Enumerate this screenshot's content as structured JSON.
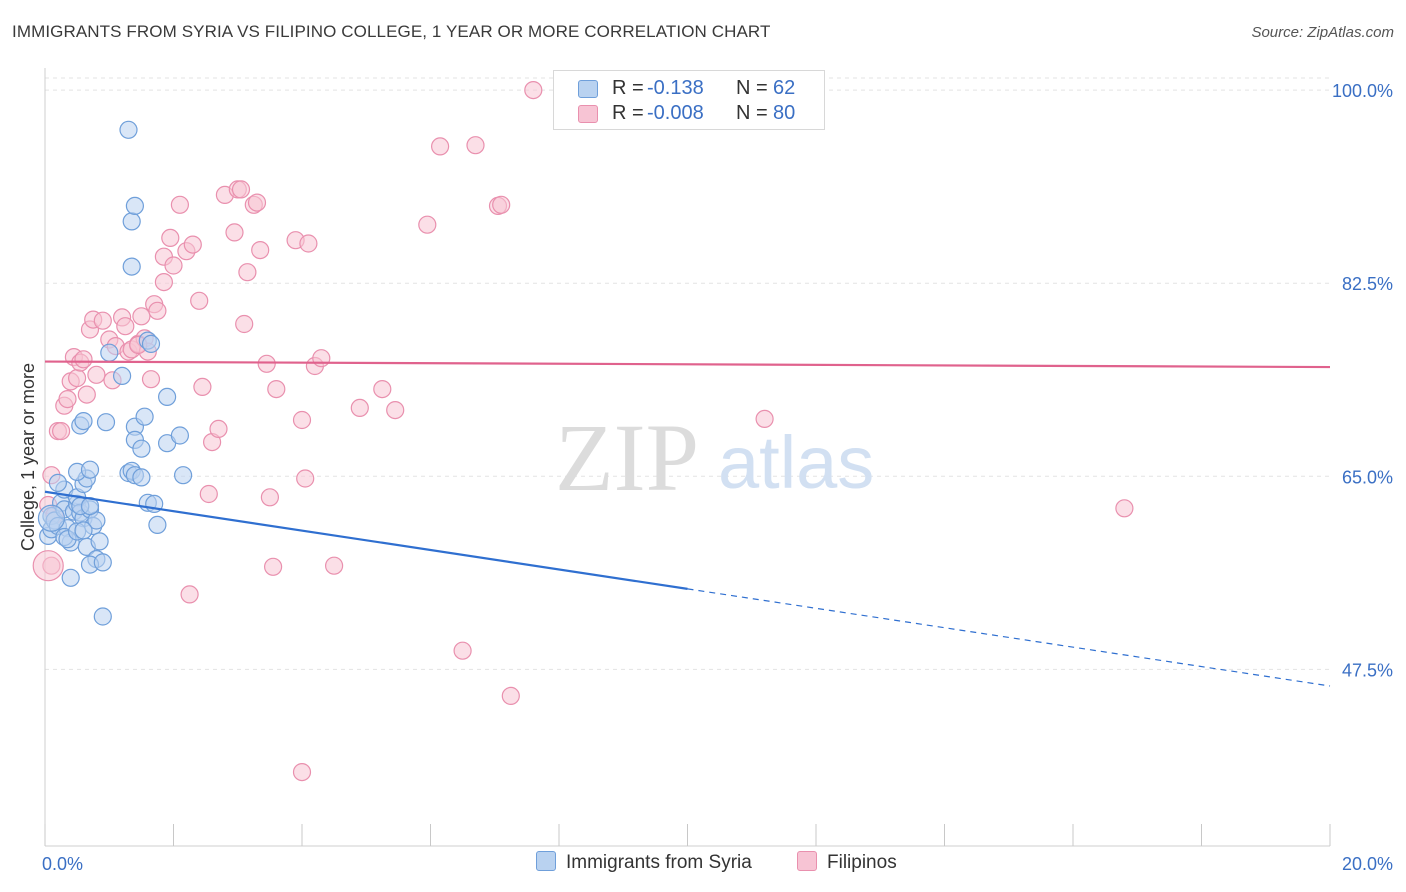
{
  "title": "IMMIGRANTS FROM SYRIA VS FILIPINO COLLEGE, 1 YEAR OR MORE CORRELATION CHART",
  "source": "Source: ZipAtlas.com",
  "legend_top": {
    "rows": [
      {
        "r_label": "R =",
        "r_value": "-0.138",
        "n_label": "N =",
        "n_value": "62"
      },
      {
        "r_label": "R =",
        "r_value": "-0.008",
        "n_label": "N =",
        "n_value": "80"
      }
    ]
  },
  "legend_bottom": {
    "syria": "Immigrants from Syria",
    "filipinos": "Filipinos"
  },
  "colors": {
    "syria_fill": "#b9d2f0",
    "syria_stroke": "#6f9fda",
    "syria_line": "#2f6fd0",
    "filipino_fill": "#f7c4d4",
    "filipino_stroke": "#e990ae",
    "filipino_line": "#e0628d",
    "axis_text": "#3a6fc4",
    "grid": "#e3e3e3"
  },
  "chart_data": {
    "type": "scatter",
    "title": "IMMIGRANTS FROM SYRIA VS FILIPINO COLLEGE, 1 YEAR OR MORE CORRELATION CHART",
    "xlabel": "",
    "ylabel": "College, 1 year or more",
    "xlim": [
      0,
      20
    ],
    "ylim": [
      31.5,
      102
    ],
    "x_tick_labels": [
      "0.0%",
      "20.0%"
    ],
    "y_ticks": [
      47.5,
      65.0,
      82.5,
      100.0
    ],
    "y_tick_labels": [
      "47.5%",
      "65.0%",
      "82.5%",
      "100.0%"
    ],
    "watermark": {
      "main": "ZIP",
      "sub": "atlas"
    },
    "series": [
      {
        "name": "Immigrants from Syria",
        "R": -0.138,
        "N": 62,
        "trend": {
          "x0": 0,
          "y0": 63.6,
          "x1": 10,
          "y1": 54.8,
          "x_end": 20,
          "y_end": 46.0
        },
        "points": [
          [
            0.05,
            59.6
          ],
          [
            0.1,
            60.2
          ],
          [
            0.1,
            61.4
          ],
          [
            0.15,
            61.0
          ],
          [
            0.2,
            60.5
          ],
          [
            0.25,
            62.6
          ],
          [
            0.3,
            62.0
          ],
          [
            0.3,
            63.8
          ],
          [
            0.35,
            60.3
          ],
          [
            0.4,
            59.0
          ],
          [
            0.45,
            61.8
          ],
          [
            0.5,
            62.5
          ],
          [
            0.5,
            63.1
          ],
          [
            0.55,
            61.7
          ],
          [
            0.6,
            61.2
          ],
          [
            0.6,
            64.3
          ],
          [
            0.65,
            64.8
          ],
          [
            0.7,
            62.0
          ],
          [
            0.75,
            60.5
          ],
          [
            0.8,
            61.0
          ],
          [
            0.3,
            59.5
          ],
          [
            0.35,
            59.3
          ],
          [
            0.4,
            55.8
          ],
          [
            0.5,
            60.0
          ],
          [
            0.6,
            60.1
          ],
          [
            0.65,
            58.6
          ],
          [
            0.8,
            57.5
          ],
          [
            0.85,
            59.1
          ],
          [
            0.2,
            64.4
          ],
          [
            0.55,
            62.3
          ],
          [
            0.7,
            57.0
          ],
          [
            0.9,
            57.2
          ],
          [
            0.5,
            65.4
          ],
          [
            0.7,
            62.3
          ],
          [
            0.7,
            65.6
          ],
          [
            0.55,
            69.6
          ],
          [
            0.6,
            70.0
          ],
          [
            0.95,
            69.9
          ],
          [
            1.4,
            69.5
          ],
          [
            1.4,
            68.3
          ],
          [
            1.5,
            67.5
          ],
          [
            1.3,
            65.3
          ],
          [
            1.35,
            65.5
          ],
          [
            1.4,
            65.1
          ],
          [
            1.6,
            62.6
          ],
          [
            1.5,
            64.9
          ],
          [
            1.9,
            68.0
          ],
          [
            2.1,
            68.7
          ],
          [
            2.15,
            65.1
          ],
          [
            1.9,
            72.2
          ],
          [
            1.6,
            77.3
          ],
          [
            1.65,
            77.0
          ],
          [
            1.35,
            88.1
          ],
          [
            1.4,
            89.5
          ],
          [
            1.3,
            96.4
          ],
          [
            1.35,
            84.0
          ],
          [
            1.0,
            76.2
          ],
          [
            1.2,
            74.1
          ],
          [
            1.55,
            70.4
          ],
          [
            1.75,
            60.6
          ],
          [
            1.7,
            62.5
          ],
          [
            0.9,
            52.3
          ]
        ]
      },
      {
        "name": "Filipinos",
        "R": -0.008,
        "N": 80,
        "trend": {
          "x0": 0,
          "y0": 75.4,
          "x1": 20,
          "y1": 74.9
        },
        "points": [
          [
            0.05,
            62.4
          ],
          [
            0.1,
            65.1
          ],
          [
            0.1,
            56.9
          ],
          [
            0.15,
            61.5
          ],
          [
            0.2,
            69.1
          ],
          [
            0.25,
            69.1
          ],
          [
            0.3,
            71.4
          ],
          [
            0.35,
            72.0
          ],
          [
            0.4,
            73.6
          ],
          [
            0.45,
            75.8
          ],
          [
            0.5,
            73.9
          ],
          [
            0.55,
            75.3
          ],
          [
            0.6,
            75.6
          ],
          [
            0.65,
            72.4
          ],
          [
            0.7,
            78.3
          ],
          [
            0.75,
            79.2
          ],
          [
            0.8,
            74.2
          ],
          [
            0.9,
            79.1
          ],
          [
            1.0,
            77.4
          ],
          [
            1.05,
            73.7
          ],
          [
            1.1,
            76.8
          ],
          [
            1.2,
            79.4
          ],
          [
            1.25,
            78.6
          ],
          [
            1.3,
            76.3
          ],
          [
            1.35,
            76.5
          ],
          [
            1.45,
            77.0
          ],
          [
            1.5,
            79.5
          ],
          [
            1.55,
            77.5
          ],
          [
            1.6,
            76.3
          ],
          [
            1.65,
            73.8
          ],
          [
            1.7,
            80.6
          ],
          [
            1.75,
            80.0
          ],
          [
            1.85,
            82.6
          ],
          [
            1.85,
            84.9
          ],
          [
            1.95,
            86.6
          ],
          [
            2.0,
            84.1
          ],
          [
            2.1,
            89.6
          ],
          [
            2.2,
            85.4
          ],
          [
            2.3,
            86.0
          ],
          [
            2.4,
            80.9
          ],
          [
            2.45,
            73.1
          ],
          [
            2.55,
            63.4
          ],
          [
            2.6,
            68.1
          ],
          [
            2.7,
            69.3
          ],
          [
            2.8,
            90.5
          ],
          [
            2.95,
            87.1
          ],
          [
            3.0,
            91.0
          ],
          [
            3.05,
            91.0
          ],
          [
            3.1,
            78.8
          ],
          [
            3.15,
            83.5
          ],
          [
            3.25,
            89.6
          ],
          [
            3.3,
            89.8
          ],
          [
            3.35,
            85.5
          ],
          [
            3.45,
            75.2
          ],
          [
            3.5,
            63.1
          ],
          [
            3.55,
            56.8
          ],
          [
            3.6,
            72.9
          ],
          [
            3.9,
            86.4
          ],
          [
            4.0,
            70.1
          ],
          [
            4.05,
            64.8
          ],
          [
            4.1,
            86.1
          ],
          [
            4.2,
            75.0
          ],
          [
            4.3,
            75.7
          ],
          [
            4.5,
            56.9
          ],
          [
            4.9,
            71.2
          ],
          [
            5.25,
            72.9
          ],
          [
            5.45,
            71.0
          ],
          [
            5.95,
            87.8
          ],
          [
            6.15,
            94.9
          ],
          [
            6.5,
            49.2
          ],
          [
            6.7,
            95.0
          ],
          [
            7.05,
            89.5
          ],
          [
            7.1,
            89.6
          ],
          [
            7.25,
            45.1
          ],
          [
            7.6,
            100.0
          ],
          [
            11.2,
            70.2
          ],
          [
            16.8,
            62.1
          ],
          [
            1.45,
            76.9
          ],
          [
            2.25,
            54.3
          ],
          [
            4.0,
            38.2
          ]
        ]
      }
    ]
  }
}
